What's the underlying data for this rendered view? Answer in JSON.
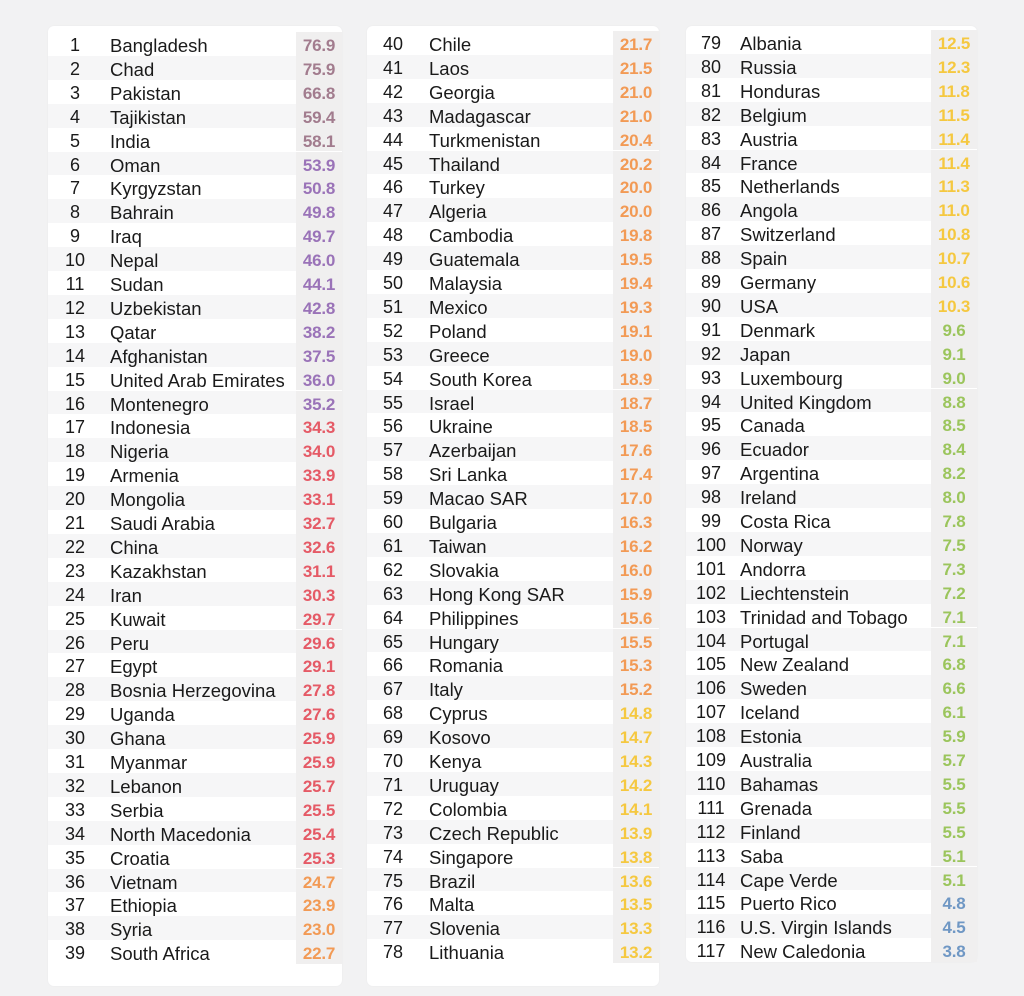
{
  "colors": {
    "tier1": "#a27c8e",
    "tier2": "#9a73b8",
    "tier3": "#e55a66",
    "tier4": "#f29a55",
    "tier5": "#f5c840",
    "tier6": "#9bc55c",
    "tier7": "#6f97c4"
  },
  "rows": [
    {
      "rank": "1",
      "country": "Bangladesh",
      "value": "76.9"
    },
    {
      "rank": "2",
      "country": "Chad",
      "value": "75.9"
    },
    {
      "rank": "3",
      "country": "Pakistan",
      "value": "66.8"
    },
    {
      "rank": "4",
      "country": "Tajikistan",
      "value": "59.4"
    },
    {
      "rank": "5",
      "country": "India",
      "value": "58.1"
    },
    {
      "rank": "6",
      "country": "Oman",
      "value": "53.9"
    },
    {
      "rank": "7",
      "country": "Kyrgyzstan",
      "value": "50.8"
    },
    {
      "rank": "8",
      "country": "Bahrain",
      "value": "49.8"
    },
    {
      "rank": "9",
      "country": "Iraq",
      "value": "49.7"
    },
    {
      "rank": "10",
      "country": "Nepal",
      "value": "46.0"
    },
    {
      "rank": "11",
      "country": "Sudan",
      "value": "44.1"
    },
    {
      "rank": "12",
      "country": "Uzbekistan",
      "value": "42.8"
    },
    {
      "rank": "13",
      "country": "Qatar",
      "value": "38.2"
    },
    {
      "rank": "14",
      "country": "Afghanistan",
      "value": "37.5"
    },
    {
      "rank": "15",
      "country": "United Arab Emirates",
      "value": "36.0"
    },
    {
      "rank": "16",
      "country": "Montenegro",
      "value": "35.2"
    },
    {
      "rank": "17",
      "country": "Indonesia",
      "value": "34.3"
    },
    {
      "rank": "18",
      "country": "Nigeria",
      "value": "34.0"
    },
    {
      "rank": "19",
      "country": "Armenia",
      "value": "33.9"
    },
    {
      "rank": "20",
      "country": "Mongolia",
      "value": "33.1"
    },
    {
      "rank": "21",
      "country": "Saudi Arabia",
      "value": "32.7"
    },
    {
      "rank": "22",
      "country": "China",
      "value": "32.6"
    },
    {
      "rank": "23",
      "country": "Kazakhstan",
      "value": "31.1"
    },
    {
      "rank": "24",
      "country": "Iran",
      "value": "30.3"
    },
    {
      "rank": "25",
      "country": "Kuwait",
      "value": "29.7"
    },
    {
      "rank": "26",
      "country": "Peru",
      "value": "29.6"
    },
    {
      "rank": "27",
      "country": "Egypt",
      "value": "29.1"
    },
    {
      "rank": "28",
      "country": "Bosnia Herzegovina",
      "value": "27.8"
    },
    {
      "rank": "29",
      "country": "Uganda",
      "value": "27.6"
    },
    {
      "rank": "30",
      "country": "Ghana",
      "value": "25.9"
    },
    {
      "rank": "31",
      "country": "Myanmar",
      "value": "25.9"
    },
    {
      "rank": "32",
      "country": "Lebanon",
      "value": "25.7"
    },
    {
      "rank": "33",
      "country": "Serbia",
      "value": "25.5"
    },
    {
      "rank": "34",
      "country": "North Macedonia",
      "value": "25.4"
    },
    {
      "rank": "35",
      "country": "Croatia",
      "value": "25.3"
    },
    {
      "rank": "36",
      "country": "Vietnam",
      "value": "24.7"
    },
    {
      "rank": "37",
      "country": "Ethiopia",
      "value": "23.9"
    },
    {
      "rank": "38",
      "country": "Syria",
      "value": "23.0"
    },
    {
      "rank": "39",
      "country": "South Africa",
      "value": "22.7"
    },
    {
      "rank": "40",
      "country": "Chile",
      "value": "21.7"
    },
    {
      "rank": "41",
      "country": "Laos",
      "value": "21.5"
    },
    {
      "rank": "42",
      "country": "Georgia",
      "value": "21.0"
    },
    {
      "rank": "43",
      "country": "Madagascar",
      "value": "21.0"
    },
    {
      "rank": "44",
      "country": "Turkmenistan",
      "value": "20.4"
    },
    {
      "rank": "45",
      "country": "Thailand",
      "value": "20.2"
    },
    {
      "rank": "46",
      "country": "Turkey",
      "value": "20.0"
    },
    {
      "rank": "47",
      "country": "Algeria",
      "value": "20.0"
    },
    {
      "rank": "48",
      "country": "Cambodia",
      "value": "19.8"
    },
    {
      "rank": "49",
      "country": "Guatemala",
      "value": "19.5"
    },
    {
      "rank": "50",
      "country": "Malaysia",
      "value": "19.4"
    },
    {
      "rank": "51",
      "country": "Mexico",
      "value": "19.3"
    },
    {
      "rank": "52",
      "country": "Poland",
      "value": "19.1"
    },
    {
      "rank": "53",
      "country": "Greece",
      "value": "19.0"
    },
    {
      "rank": "54",
      "country": "South Korea",
      "value": "18.9"
    },
    {
      "rank": "55",
      "country": "Israel",
      "value": "18.7"
    },
    {
      "rank": "56",
      "country": "Ukraine",
      "value": "18.5"
    },
    {
      "rank": "57",
      "country": "Azerbaijan",
      "value": "17.6"
    },
    {
      "rank": "58",
      "country": "Sri Lanka",
      "value": "17.4"
    },
    {
      "rank": "59",
      "country": "Macao SAR",
      "value": "17.0"
    },
    {
      "rank": "60",
      "country": "Bulgaria",
      "value": "16.3"
    },
    {
      "rank": "61",
      "country": "Taiwan",
      "value": "16.2"
    },
    {
      "rank": "62",
      "country": "Slovakia",
      "value": "16.0"
    },
    {
      "rank": "63",
      "country": "Hong Kong SAR",
      "value": "15.9"
    },
    {
      "rank": "64",
      "country": "Philippines",
      "value": "15.6"
    },
    {
      "rank": "65",
      "country": "Hungary",
      "value": "15.5"
    },
    {
      "rank": "66",
      "country": "Romania",
      "value": "15.3"
    },
    {
      "rank": "67",
      "country": "Italy",
      "value": "15.2"
    },
    {
      "rank": "68",
      "country": "Cyprus",
      "value": "14.8"
    },
    {
      "rank": "69",
      "country": "Kosovo",
      "value": "14.7"
    },
    {
      "rank": "70",
      "country": "Kenya",
      "value": "14.3"
    },
    {
      "rank": "71",
      "country": "Uruguay",
      "value": "14.2"
    },
    {
      "rank": "72",
      "country": "Colombia",
      "value": "14.1"
    },
    {
      "rank": "73",
      "country": "Czech Republic",
      "value": "13.9"
    },
    {
      "rank": "74",
      "country": "Singapore",
      "value": "13.8"
    },
    {
      "rank": "75",
      "country": "Brazil",
      "value": "13.6"
    },
    {
      "rank": "76",
      "country": "Malta",
      "value": "13.5"
    },
    {
      "rank": "77",
      "country": "Slovenia",
      "value": "13.3"
    },
    {
      "rank": "78",
      "country": "Lithuania",
      "value": "13.2"
    },
    {
      "rank": "79",
      "country": "Albania",
      "value": "12.5"
    },
    {
      "rank": "80",
      "country": "Russia",
      "value": "12.3"
    },
    {
      "rank": "81",
      "country": "Honduras",
      "value": "11.8"
    },
    {
      "rank": "82",
      "country": "Belgium",
      "value": "11.5"
    },
    {
      "rank": "83",
      "country": "Austria",
      "value": "11.4"
    },
    {
      "rank": "84",
      "country": "France",
      "value": "11.4"
    },
    {
      "rank": "85",
      "country": "Netherlands",
      "value": "11.3"
    },
    {
      "rank": "86",
      "country": "Angola",
      "value": "11.0"
    },
    {
      "rank": "87",
      "country": "Switzerland",
      "value": "10.8"
    },
    {
      "rank": "88",
      "country": "Spain",
      "value": "10.7"
    },
    {
      "rank": "89",
      "country": "Germany",
      "value": "10.6"
    },
    {
      "rank": "90",
      "country": "USA",
      "value": "10.3"
    },
    {
      "rank": "91",
      "country": "Denmark",
      "value": "9.6"
    },
    {
      "rank": "92",
      "country": "Japan",
      "value": "9.1"
    },
    {
      "rank": "93",
      "country": "Luxembourg",
      "value": "9.0"
    },
    {
      "rank": "94",
      "country": "United Kingdom",
      "value": "8.8"
    },
    {
      "rank": "95",
      "country": "Canada",
      "value": "8.5"
    },
    {
      "rank": "96",
      "country": "Ecuador",
      "value": "8.4"
    },
    {
      "rank": "97",
      "country": "Argentina",
      "value": "8.2"
    },
    {
      "rank": "98",
      "country": "Ireland",
      "value": "8.0"
    },
    {
      "rank": "99",
      "country": "Costa Rica",
      "value": "7.8"
    },
    {
      "rank": "100",
      "country": "Norway",
      "value": "7.5"
    },
    {
      "rank": "101",
      "country": "Andorra",
      "value": "7.3"
    },
    {
      "rank": "102",
      "country": "Liechtenstein",
      "value": "7.2"
    },
    {
      "rank": "103",
      "country": "Trinidad and Tobago",
      "value": "7.1"
    },
    {
      "rank": "104",
      "country": "Portugal",
      "value": "7.1"
    },
    {
      "rank": "105",
      "country": "New Zealand",
      "value": "6.8"
    },
    {
      "rank": "106",
      "country": "Sweden",
      "value": "6.6"
    },
    {
      "rank": "107",
      "country": "Iceland",
      "value": "6.1"
    },
    {
      "rank": "108",
      "country": "Estonia",
      "value": "5.9"
    },
    {
      "rank": "109",
      "country": "Australia",
      "value": "5.7"
    },
    {
      "rank": "110",
      "country": "Bahamas",
      "value": "5.5"
    },
    {
      "rank": "111",
      "country": "Grenada",
      "value": "5.5"
    },
    {
      "rank": "112",
      "country": "Finland",
      "value": "5.5"
    },
    {
      "rank": "113",
      "country": "Saba",
      "value": "5.1"
    },
    {
      "rank": "114",
      "country": "Cape Verde",
      "value": "5.1"
    },
    {
      "rank": "115",
      "country": "Puerto Rico",
      "value": "4.8"
    },
    {
      "rank": "116",
      "country": "U.S. Virgin Islands",
      "value": "4.5"
    },
    {
      "rank": "117",
      "country": "New Caledonia",
      "value": "3.8"
    }
  ]
}
